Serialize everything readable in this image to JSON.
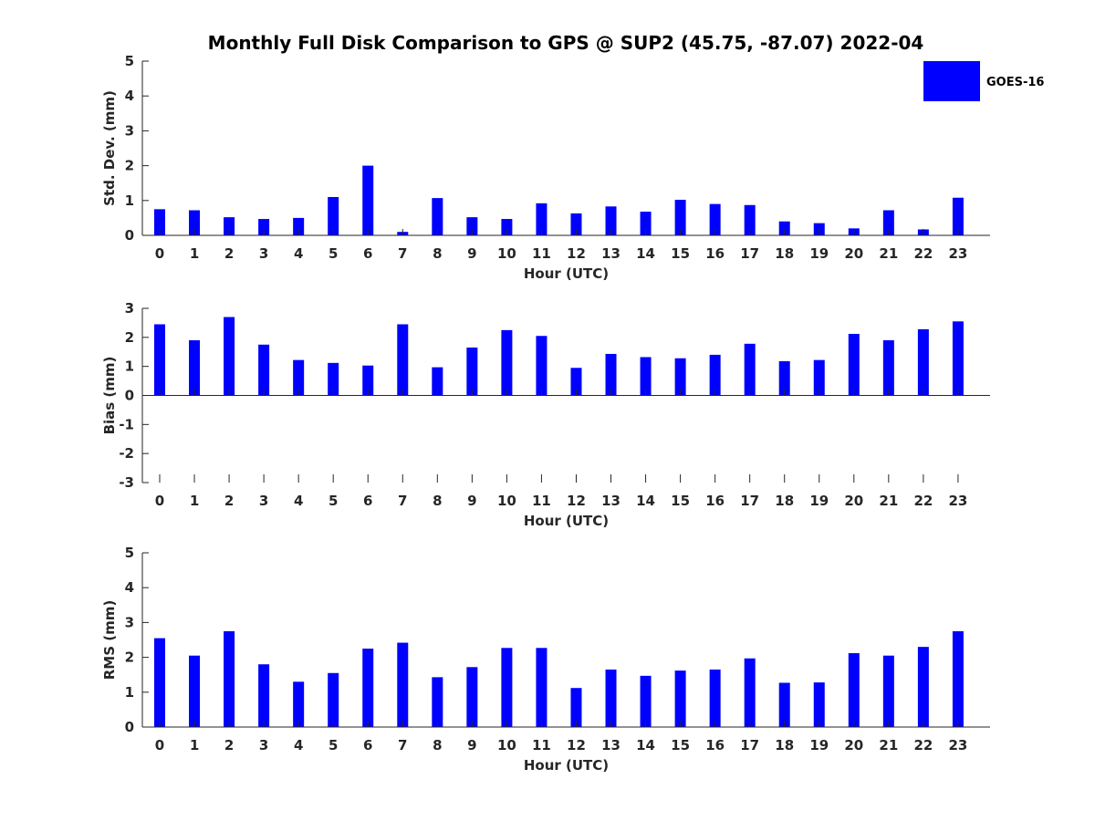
{
  "title": "Monthly Full Disk Comparison to GPS @ SUP2 (45.75, -87.07) 2022-04",
  "legend": {
    "label": "GOES-16",
    "position": "top-right"
  },
  "colors": {
    "bar": "#0000ff",
    "axis": "#262626",
    "errorbar": "#000000"
  },
  "chart_data": [
    {
      "type": "bar",
      "xlabel": "Hour (UTC)",
      "ylabel": "Std. Dev. (mm)",
      "ylim": [
        0,
        5
      ],
      "yticks": [
        0,
        1,
        2,
        3,
        4,
        5
      ],
      "categories": [
        0,
        1,
        2,
        3,
        4,
        5,
        6,
        7,
        8,
        9,
        10,
        11,
        12,
        13,
        14,
        15,
        16,
        17,
        18,
        19,
        20,
        21,
        22,
        23
      ],
      "series": [
        {
          "name": "GOES-16",
          "values": [
            0.75,
            0.72,
            0.52,
            0.47,
            0.5,
            1.1,
            2.0,
            0.1,
            1.07,
            0.52,
            0.47,
            0.92,
            0.63,
            0.83,
            0.68,
            1.02,
            0.9,
            0.87,
            0.4,
            0.35,
            0.2,
            0.72,
            0.17,
            1.08
          ]
        }
      ],
      "show_legend": true
    },
    {
      "type": "bar",
      "xlabel": "Hour (UTC)",
      "ylabel": "Bias (mm)",
      "ylim": [
        -3,
        3
      ],
      "yticks": [
        -3,
        -2,
        -1,
        0,
        1,
        2,
        3
      ],
      "categories": [
        0,
        1,
        2,
        3,
        4,
        5,
        6,
        7,
        8,
        9,
        10,
        11,
        12,
        13,
        14,
        15,
        16,
        17,
        18,
        19,
        20,
        21,
        22,
        23
      ],
      "series": [
        {
          "name": "GOES-16",
          "values": [
            2.45,
            1.9,
            2.7,
            1.75,
            1.22,
            1.12,
            1.03,
            2.45,
            0.97,
            1.65,
            2.25,
            2.05,
            0.95,
            1.43,
            1.32,
            1.28,
            1.4,
            1.78,
            1.18,
            1.22,
            2.12,
            1.9,
            2.28,
            2.55
          ]
        }
      ],
      "show_legend": false
    },
    {
      "type": "bar",
      "xlabel": "Hour (UTC)",
      "ylabel": "RMS (mm)",
      "ylim": [
        0,
        5
      ],
      "yticks": [
        0,
        1,
        2,
        3,
        4,
        5
      ],
      "categories": [
        0,
        1,
        2,
        3,
        4,
        5,
        6,
        7,
        8,
        9,
        10,
        11,
        12,
        13,
        14,
        15,
        16,
        17,
        18,
        19,
        20,
        21,
        22,
        23
      ],
      "series": [
        {
          "name": "GOES-16",
          "values": [
            2.55,
            2.05,
            2.75,
            1.8,
            1.3,
            1.55,
            2.25,
            2.42,
            1.43,
            1.72,
            2.27,
            2.27,
            1.12,
            1.65,
            1.47,
            1.62,
            1.65,
            1.97,
            1.27,
            1.28,
            2.12,
            2.05,
            2.3,
            2.75
          ]
        }
      ],
      "show_legend": false
    }
  ]
}
